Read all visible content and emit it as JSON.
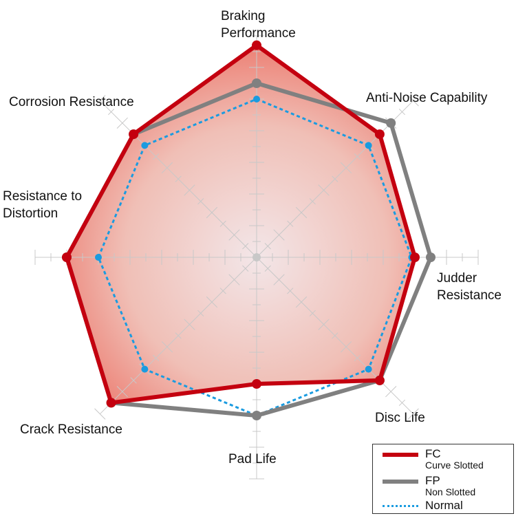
{
  "chart_data": {
    "type": "radar",
    "axes": [
      "Braking Performance",
      "Anti-Noise Capability",
      "Judder Resistance",
      "Disc Life",
      "Pad Life",
      "Crack Resistance",
      "Resistance to Distortion",
      "Corrosion Resistance"
    ],
    "axis_labels": [
      [
        "Braking",
        "Performance"
      ],
      [
        "Anti-Noise Capability"
      ],
      [
        "Judder",
        "Resistance"
      ],
      [
        "Disc Life"
      ],
      [
        "Pad Life"
      ],
      [
        "Crack Resistance"
      ],
      [
        "Resistance to",
        "Distortion"
      ],
      [
        "Corrosion Resistance"
      ]
    ],
    "range": [
      0,
      7
    ],
    "grid": true,
    "legend_position": "bottom-right",
    "series": [
      {
        "name": "FC",
        "subtitle": "Curve Slotted",
        "color": "#c4000f",
        "style": "solid",
        "values": [
          6.7,
          5.5,
          5.0,
          5.5,
          4.0,
          6.5,
          6.0,
          5.5
        ]
      },
      {
        "name": "FP",
        "subtitle": "Non Slotted",
        "color": "#808080",
        "style": "solid",
        "values": [
          5.5,
          6.0,
          5.5,
          5.5,
          5.0,
          6.5,
          6.0,
          5.5
        ]
      },
      {
        "name": "Normal",
        "color": "#1a9be0",
        "style": "dotted",
        "values": [
          5.0,
          5.0,
          4.9,
          5.0,
          5.0,
          5.0,
          5.0,
          5.0
        ]
      }
    ]
  }
}
